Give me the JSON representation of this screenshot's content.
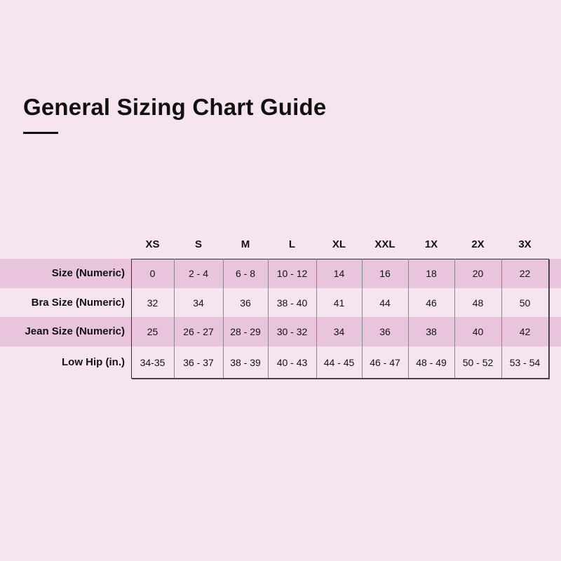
{
  "title": "General Sizing Chart Guide",
  "colors": {
    "background": "#f6e5ef",
    "stripe": "#e9c4dd",
    "text": "#111111"
  },
  "columns": [
    "XS",
    "S",
    "M",
    "L",
    "XL",
    "XXL",
    "1X",
    "2X",
    "3X"
  ],
  "rows": [
    {
      "label": "Size (Numeric)",
      "values": [
        "0",
        "2 - 4",
        "6 - 8",
        "10 - 12",
        "14",
        "16",
        "18",
        "20",
        "22"
      ]
    },
    {
      "label": "Bra Size (Numeric)",
      "values": [
        "32",
        "34",
        "36",
        "38 - 40",
        "41",
        "44",
        "46",
        "48",
        "50"
      ]
    },
    {
      "label": "Jean Size (Numeric)",
      "values": [
        "25",
        "26 - 27",
        "28 - 29",
        "30 - 32",
        "34",
        "36",
        "38",
        "40",
        "42"
      ]
    },
    {
      "label": "Low Hip (in.)",
      "values": [
        "34-35",
        "36 - 37",
        "38 - 39",
        "40 - 43",
        "44 - 45",
        "46 - 47",
        "48 - 49",
        "50 - 52",
        "53 - 54"
      ]
    }
  ]
}
